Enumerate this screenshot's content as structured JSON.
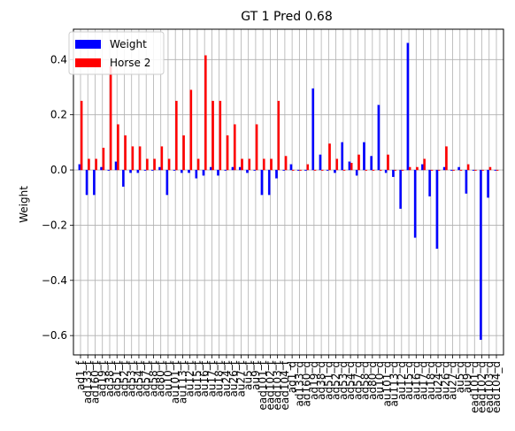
{
  "chart_data": {
    "type": "bar",
    "title": "GT 1 Pred 0.68",
    "xlabel": "",
    "ylabel": "Weight",
    "ylim": [
      -0.67,
      0.51
    ],
    "yticks": [
      -0.6,
      -0.4,
      -0.2,
      0.0,
      0.2,
      0.4
    ],
    "ytick_labels": [
      "−0.6",
      "−0.4",
      "−0.2",
      "0.0",
      "0.2",
      "0.4"
    ],
    "grid": true,
    "legend_position": "top-left",
    "categories": [
      "ad1_f",
      "ad133_f",
      "ad160_f",
      "ad19_f",
      "ad38_f",
      "ad51_f",
      "ad52_f",
      "ad53_f",
      "ad54_f",
      "ad57_f",
      "ad58_f",
      "ad80_f",
      "au10_f",
      "au101_f",
      "au113_f",
      "au12_f",
      "au15_f",
      "au16_f",
      "au17_f",
      "au18_f",
      "au24_f",
      "au26_f",
      "au27_f",
      "au5_f",
      "au9_f",
      "ead101_f",
      "ead102_f",
      "ead103_f",
      "ead104_f",
      "ad1_d",
      "ad133_d",
      "ad160_d",
      "ad19_d",
      "ad38_d",
      "ad51_d",
      "ad52_d",
      "ad53_d",
      "ad54_d",
      "ad57_d",
      "ad58_d",
      "ad80_d",
      "au10_d",
      "au101_d",
      "au113_d",
      "au12_d",
      "au15_d",
      "au16_d",
      "au17_d",
      "au18_d",
      "au24_d",
      "au26_d",
      "au27_d",
      "au5_d",
      "au9_d",
      "ead101_d",
      "ead102_d",
      "ead103_d",
      "ead104_d"
    ],
    "series": [
      {
        "name": "Weight",
        "color": "#0000ff",
        "values": [
          0.02,
          -0.09,
          -0.09,
          0.01,
          0.0,
          0.03,
          -0.06,
          -0.01,
          -0.01,
          0.0,
          0.0,
          0.01,
          -0.09,
          0.0,
          -0.01,
          -0.01,
          -0.03,
          -0.02,
          0.01,
          -0.02,
          0.0,
          0.01,
          0.01,
          -0.01,
          0.0,
          -0.09,
          -0.09,
          -0.03,
          0.0,
          0.02,
          0.0,
          0.0,
          0.295,
          0.055,
          0.0,
          -0.01,
          0.1,
          0.03,
          -0.02,
          0.1,
          0.05,
          0.235,
          -0.01,
          -0.025,
          -0.14,
          0.46,
          -0.245,
          0.02,
          -0.095,
          -0.285,
          0.01,
          0.0,
          0.01,
          -0.085,
          0.0,
          -0.615,
          -0.1,
          0.0
        ]
      },
      {
        "name": "Horse 2",
        "color": "#ff0000",
        "values": [
          0.25,
          0.04,
          0.04,
          0.08,
          0.375,
          0.165,
          0.125,
          0.085,
          0.085,
          0.04,
          0.04,
          0.085,
          0.04,
          0.25,
          0.125,
          0.29,
          0.04,
          0.415,
          0.25,
          0.25,
          0.125,
          0.165,
          0.04,
          0.04,
          0.165,
          0.04,
          0.04,
          0.25,
          0.05,
          0.0,
          0.0,
          0.02,
          0.0,
          0.0,
          0.095,
          0.04,
          0.0,
          0.025,
          0.055,
          0.0,
          0.0,
          0.0,
          0.055,
          0.0,
          0.0,
          0.01,
          0.01,
          0.04,
          0.0,
          0.0,
          0.085,
          0.0,
          0.0,
          0.02,
          0.0,
          0.0,
          0.01,
          0.0
        ]
      }
    ]
  }
}
